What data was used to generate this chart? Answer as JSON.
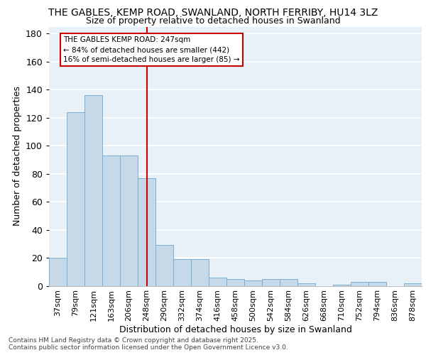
{
  "title_line1": "THE GABLES, KEMP ROAD, SWANLAND, NORTH FERRIBY, HU14 3LZ",
  "title_line2": "Size of property relative to detached houses in Swanland",
  "xlabel": "Distribution of detached houses by size in Swanland",
  "ylabel": "Number of detached properties",
  "categories": [
    "37sqm",
    "79sqm",
    "121sqm",
    "163sqm",
    "206sqm",
    "248sqm",
    "290sqm",
    "332sqm",
    "374sqm",
    "416sqm",
    "458sqm",
    "500sqm",
    "542sqm",
    "584sqm",
    "626sqm",
    "668sqm",
    "710sqm",
    "752sqm",
    "794sqm",
    "836sqm",
    "878sqm"
  ],
  "values": [
    20,
    124,
    136,
    93,
    93,
    77,
    29,
    19,
    19,
    6,
    5,
    4,
    5,
    5,
    2,
    0,
    1,
    3,
    3,
    0,
    2
  ],
  "bar_color": "#c5d9e8",
  "bar_edge_color": "#7bafd4",
  "vline_x_index": 5,
  "vline_color": "#cc0000",
  "annotation_title": "THE GABLES KEMP ROAD: 247sqm",
  "annotation_line1": "← 84% of detached houses are smaller (442)",
  "annotation_line2": "16% of semi-detached houses are larger (85) →",
  "annotation_box_color": "#cc0000",
  "ylim": [
    0,
    185
  ],
  "yticks": [
    0,
    20,
    40,
    60,
    80,
    100,
    120,
    140,
    160,
    180
  ],
  "bg_color": "#e8f0f8",
  "grid_color": "#ffffff",
  "footnote_line1": "Contains HM Land Registry data © Crown copyright and database right 2025.",
  "footnote_line2": "Contains public sector information licensed under the Open Government Licence v3.0."
}
